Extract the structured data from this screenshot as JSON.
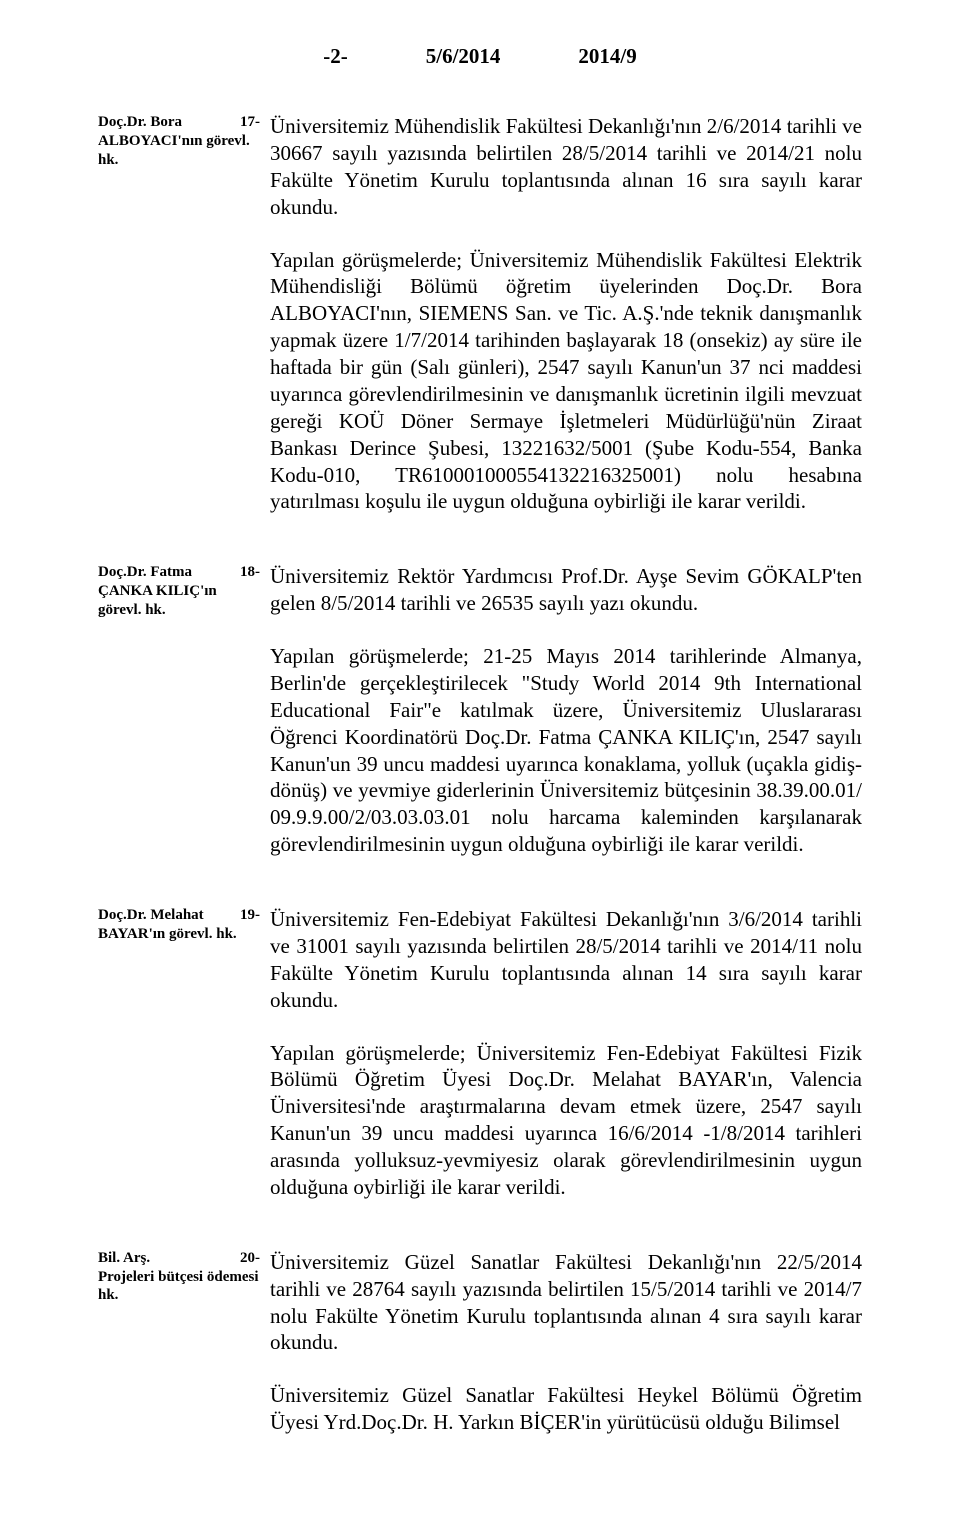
{
  "header": {
    "page_no": "-2-",
    "date": "5/6/2014",
    "doc_no": "2014/9"
  },
  "entries": [
    {
      "side_line1_bold": "Doç.Dr. Bora",
      "side_line1_num": "17-",
      "side_line2_bold": "ALBOYACI'nın görevl. hk.",
      "paras": [
        "Üniversitemiz Mühendislik Fakültesi Dekanlığı'nın 2/6/2014 tarihli ve 30667 sayılı yazısında belirtilen 28/5/2014 tarihli ve 2014/21 nolu Fakülte Yönetim Kurulu toplantısında alınan 16 sıra sayılı karar okundu.",
        "Yapılan görüşmelerde; Üniversitemiz Mühendislik Fakültesi Elektrik Mühendisliği Bölümü öğretim üyelerinden Doç.Dr. Bora ALBOYACI'nın, SIEMENS San. ve Tic. A.Ş.'nde teknik danışmanlık yapmak üzere 1/7/2014 tarihinden başlayarak 18 (onsekiz) ay süre ile haftada bir gün (Salı günleri), 2547 sayılı Kanun'un 37 nci maddesi uyarınca görevlendirilmesinin ve danışmanlık ücretinin ilgili mevzuat gereği KOÜ Döner Sermaye İşletmeleri Müdürlüğü'nün Ziraat Bankası Derince Şubesi, 13221632/5001 (Şube Kodu-554, Banka Kodu-010, TR610001000554132216325001) nolu hesabına yatırılması koşulu ile uygun olduğuna oybirliği ile karar verildi."
      ]
    },
    {
      "side_line1_bold": "Doç.Dr. Fatma",
      "side_line1_num": "18-",
      "side_line2_bold": "ÇANKA KILIÇ'ın görevl. hk.",
      "paras": [
        "Üniversitemiz Rektör Yardımcısı Prof.Dr. Ayşe Sevim GÖKALP'ten gelen 8/5/2014 tarihli ve 26535 sayılı yazı okundu.",
        "Yapılan görüşmelerde; 21-25 Mayıs 2014 tarihlerinde Almanya, Berlin'de gerçekleştirilecek \"Study World 2014 9th International Educational Fair\"e katılmak üzere, Üniversitemiz Uluslararası Öğrenci Koordinatörü Doç.Dr. Fatma ÇANKA KILIÇ'ın, 2547 sayılı Kanun'un 39 uncu maddesi uyarınca konaklama, yolluk (uçakla gidiş-dönüş) ve yevmiye giderlerinin Üniversitemiz bütçesinin 38.39.00.01/ 09.9.9.00/2/03.03.03.01 nolu harcama kaleminden karşılanarak görevlendirilmesinin uygun olduğuna oybirliği ile karar verildi."
      ]
    },
    {
      "side_line1_bold": "Doç.Dr. Melahat",
      "side_line1_num": "19-",
      "side_line2_bold": "BAYAR'ın görevl. hk.",
      "paras": [
        "Üniversitemiz Fen-Edebiyat Fakültesi Dekanlığı'nın 3/6/2014 tarihli ve 31001 sayılı yazısında belirtilen 28/5/2014 tarihli ve 2014/11 nolu Fakülte Yönetim Kurulu toplantısında alınan 14 sıra sayılı karar okundu.",
        "Yapılan görüşmelerde; Üniversitemiz Fen-Edebiyat Fakültesi Fizik Bölümü Öğretim Üyesi Doç.Dr. Melahat BAYAR'ın, Valencia Üniversitesi'nde araştırmalarına devam etmek üzere, 2547 sayılı Kanun'un 39 uncu maddesi uyarınca 16/6/2014 -1/8/2014 tarihleri arasında yolluksuz-yevmiyesiz olarak görevlendirilmesinin uygun olduğuna oybirliği ile karar verildi."
      ]
    },
    {
      "side_line1_bold": "Bil. Arş.",
      "side_line1_num": "20-",
      "side_line2_bold": "Projeleri bütçesi ödemesi hk.",
      "paras": [
        "Üniversitemiz Güzel Sanatlar Fakültesi Dekanlığı'nın 22/5/2014 tarihli ve 28764 sayılı yazısında belirtilen 15/5/2014 tarihli ve 2014/7 nolu Fakülte Yönetim Kurulu toplantısında alınan 4 sıra sayılı karar okundu.",
        "Üniversitemiz Güzel Sanatlar Fakültesi Heykel Bölümü Öğretim Üyesi Yrd.Doç.Dr. H. Yarkın BİÇER'in yürütücüsü olduğu Bilimsel"
      ]
    }
  ]
}
